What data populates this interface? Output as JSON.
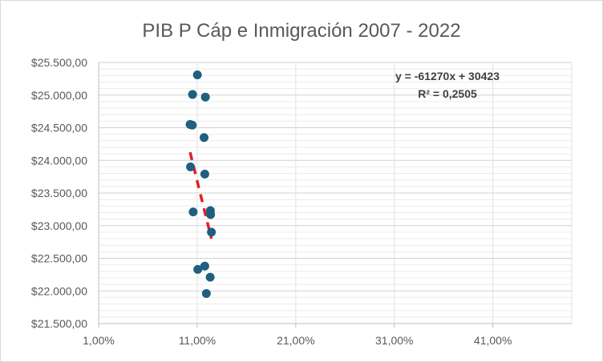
{
  "chart_data": {
    "type": "scatter",
    "title": "PIB P Cáp e Inmigración 2007 - 2022",
    "xlabel": "",
    "ylabel": "",
    "xlim": [
      0.01,
      0.49
    ],
    "ylim": [
      21500,
      25500
    ],
    "x_ticks": [
      0.01,
      0.11,
      0.21,
      0.31,
      0.41
    ],
    "x_tick_labels": [
      "1,00%",
      "11,00%",
      "21,00%",
      "31,00%",
      "41,00%"
    ],
    "y_ticks": [
      21500,
      22000,
      22500,
      23000,
      23500,
      24000,
      24500,
      25000,
      25500
    ],
    "y_tick_labels": [
      "$21.500,00",
      "$22.000,00",
      "$22.500,00",
      "$23.000,00",
      "$23.500,00",
      "$24.000,00",
      "$24.500,00",
      "$25.000,00",
      "$25.500,00"
    ],
    "grid": true,
    "legend": "none",
    "point_color": "#1f5f7f",
    "trendline_color": "#e32020",
    "series": [
      {
        "points": [
          {
            "x": 0.1102,
            "y": 25310
          },
          {
            "x": 0.1053,
            "y": 25010
          },
          {
            "x": 0.1183,
            "y": 24970
          },
          {
            "x": 0.1028,
            "y": 24550
          },
          {
            "x": 0.105,
            "y": 24540
          },
          {
            "x": 0.117,
            "y": 24350
          },
          {
            "x": 0.1032,
            "y": 23900
          },
          {
            "x": 0.1177,
            "y": 23790
          },
          {
            "x": 0.1059,
            "y": 23210
          },
          {
            "x": 0.1234,
            "y": 23230
          },
          {
            "x": 0.1236,
            "y": 23170
          },
          {
            "x": 0.1244,
            "y": 22900
          },
          {
            "x": 0.1177,
            "y": 22380
          },
          {
            "x": 0.1106,
            "y": 22330
          },
          {
            "x": 0.1232,
            "y": 22210
          },
          {
            "x": 0.1193,
            "y": 21960
          }
        ]
      }
    ],
    "trendline": {
      "slope": -61270,
      "intercept": 30423,
      "x_range": [
        0.1028,
        0.1244
      ],
      "equation_label": "y = -61270x + 30423",
      "r2_label": "R² = 0,2505"
    }
  }
}
